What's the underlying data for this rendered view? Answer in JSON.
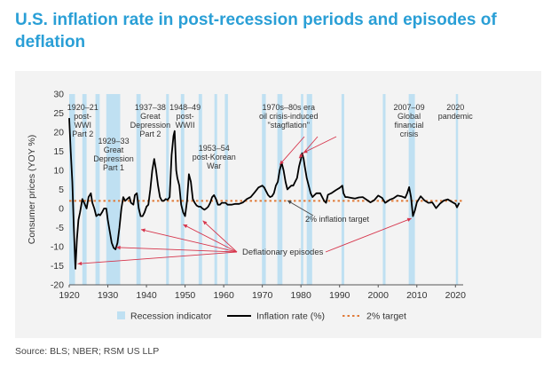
{
  "title": "U.S. inflation rate in post-recession periods and episodes of deflation",
  "source": "Source: BLS; NBER; RSM US LLP",
  "colors": {
    "title": "#2a9fd6",
    "recession": "#bfe0f2",
    "line": "#000000",
    "target": "#e07b39",
    "arrow": "#d6344b",
    "panel": "#f3f3f3"
  },
  "chart_data": {
    "type": "line",
    "ylabel": "Consumer prices (YOY %)",
    "xlabel": "",
    "xlim": [
      1920,
      2022
    ],
    "ylim": [
      -20,
      30
    ],
    "xticks": [
      1920,
      1930,
      1940,
      1950,
      1960,
      1970,
      1980,
      1990,
      2000,
      2010,
      2020
    ],
    "yticks": [
      30,
      25,
      20,
      15,
      10,
      5,
      0,
      -5,
      -10,
      -15,
      -20
    ],
    "grid": false,
    "legend_position": "bottom",
    "legend": [
      "Recession indicator",
      "Inflation rate (%)",
      "2% target"
    ],
    "target_line": 2,
    "recessions": [
      [
        1920.0,
        1921.5
      ],
      [
        1923.4,
        1924.5
      ],
      [
        1926.8,
        1927.9
      ],
      [
        1929.6,
        1933.2
      ],
      [
        1937.4,
        1938.5
      ],
      [
        1945.1,
        1945.8
      ],
      [
        1948.9,
        1949.8
      ],
      [
        1953.5,
        1954.4
      ],
      [
        1957.6,
        1958.3
      ],
      [
        1960.3,
        1961.1
      ],
      [
        1969.9,
        1970.9
      ],
      [
        1973.9,
        1975.2
      ],
      [
        1980.0,
        1980.6
      ],
      [
        1981.5,
        1982.9
      ],
      [
        1990.5,
        1991.2
      ],
      [
        2001.2,
        2001.9
      ],
      [
        2007.9,
        2009.5
      ],
      [
        2020.1,
        2020.4
      ]
    ],
    "series": [
      {
        "name": "Inflation rate (%)",
        "x": [
          1920,
          1920.4,
          1920.8,
          1921.2,
          1921.6,
          1922,
          1922.4,
          1922.8,
          1923.4,
          1924,
          1924.5,
          1925,
          1925.6,
          1926,
          1926.5,
          1927,
          1927.6,
          1928,
          1928.5,
          1929,
          1929.6,
          1930,
          1930.5,
          1931,
          1931.5,
          1932,
          1932.5,
          1933,
          1933.5,
          1934,
          1934.5,
          1935,
          1935.6,
          1936,
          1936.6,
          1937,
          1937.5,
          1938,
          1938.5,
          1939,
          1939.5,
          1940,
          1940.5,
          1941,
          1941.5,
          1942,
          1942.5,
          1943,
          1943.5,
          1944,
          1944.5,
          1945,
          1945.5,
          1946,
          1946.5,
          1947,
          1947.3,
          1947.7,
          1948,
          1948.5,
          1949,
          1949.5,
          1950,
          1950.5,
          1951,
          1951.5,
          1952,
          1952.5,
          1953,
          1953.5,
          1954,
          1954.5,
          1955,
          1955.5,
          1956,
          1956.5,
          1957,
          1957.5,
          1958,
          1958.5,
          1959,
          1959.5,
          1960,
          1960.5,
          1961,
          1962,
          1963,
          1964,
          1965,
          1966,
          1967,
          1968,
          1969,
          1970,
          1970.5,
          1971,
          1971.5,
          1972,
          1972.5,
          1973,
          1973.5,
          1974,
          1974.5,
          1975,
          1975.5,
          1976,
          1976.5,
          1977,
          1977.5,
          1978,
          1978.5,
          1979,
          1979.5,
          1980,
          1980.3,
          1980.7,
          1981,
          1981.5,
          1982,
          1982.5,
          1983,
          1983.5,
          1984,
          1985,
          1986,
          1986.5,
          1987,
          1988,
          1989,
          1990,
          1990.7,
          1991,
          1991.5,
          1992,
          1993,
          1994,
          1995,
          1996,
          1997,
          1998,
          1999,
          2000,
          2001,
          2001.8,
          2002,
          2003,
          2004,
          2005,
          2006,
          2007,
          2007.5,
          2008,
          2008.5,
          2009,
          2009.5,
          2010,
          2011,
          2012,
          2013,
          2014,
          2015,
          2016,
          2017,
          2018,
          2019,
          2020,
          2020.4,
          2021
        ],
        "values": [
          23.7,
          15,
          7,
          -5,
          -15.8,
          -8,
          -3,
          -1,
          2.5,
          1.2,
          0,
          3,
          4,
          1.5,
          0,
          -2,
          -1.5,
          -1.8,
          -1,
          0,
          0,
          -3,
          -6,
          -9,
          -10.3,
          -10.7,
          -9,
          -5,
          0,
          3,
          2,
          2.5,
          3,
          1.5,
          1,
          3.5,
          4,
          0,
          -2,
          -2,
          -1,
          0.5,
          1,
          5,
          10,
          13,
          10,
          6,
          3,
          2,
          2,
          2.5,
          2.3,
          3,
          14,
          19,
          20.3,
          10,
          8,
          6,
          1,
          -1,
          -2,
          2,
          9,
          7,
          2.5,
          1.5,
          0.8,
          0.5,
          0.5,
          0,
          -0.3,
          0,
          0.5,
          1.5,
          3,
          3.5,
          2.5,
          1,
          1,
          1.5,
          1.5,
          1.5,
          1,
          1,
          1.2,
          1.2,
          1.6,
          2.5,
          3,
          4.2,
          5.5,
          6,
          5.5,
          4.5,
          3.5,
          3,
          3.2,
          4,
          6,
          7,
          10,
          12,
          10,
          7,
          5,
          5.5,
          6,
          6,
          7,
          8,
          11,
          13,
          14.5,
          13,
          11,
          8,
          6,
          4,
          3,
          3.5,
          4,
          4,
          2,
          1.5,
          3.6,
          4.1,
          4.8,
          5.4,
          6,
          4,
          3,
          3,
          2.8,
          2.6,
          2.9,
          3,
          2.3,
          1.6,
          2.2,
          3.4,
          2.8,
          1.5,
          1.6,
          2.3,
          2.7,
          3.4,
          3.2,
          2.8,
          4,
          5.6,
          3,
          -2,
          -0.5,
          1.6,
          3.2,
          2.1,
          1.5,
          1.6,
          0.1,
          1.3,
          2.1,
          2.4,
          1.8,
          1.2,
          0.3,
          1.5
        ]
      }
    ],
    "annotations": [
      {
        "x": 1923.5,
        "text": "1920–21 post-WWI Part 2"
      },
      {
        "x": 1931.5,
        "text": "1929–33 Great Depression Part 1"
      },
      {
        "x": 1941,
        "text": "1937–38 Great Depression Part 2"
      },
      {
        "x": 1950,
        "text": "1948–49 post-WWII"
      },
      {
        "x": 1957.5,
        "text": "1953–54 post-Korean War"
      },
      {
        "x": 1976.5,
        "text": "1970s–80s era oil crisis-induced \"stagflation\""
      },
      {
        "x": 2008,
        "text": "2007–09 Global financial crisis"
      },
      {
        "x": 2019,
        "text": "2020 pandemic"
      },
      {
        "x": 1977,
        "text": "2% inflation target"
      },
      {
        "x": 1976,
        "text": "Deflationary episodes"
      }
    ]
  }
}
